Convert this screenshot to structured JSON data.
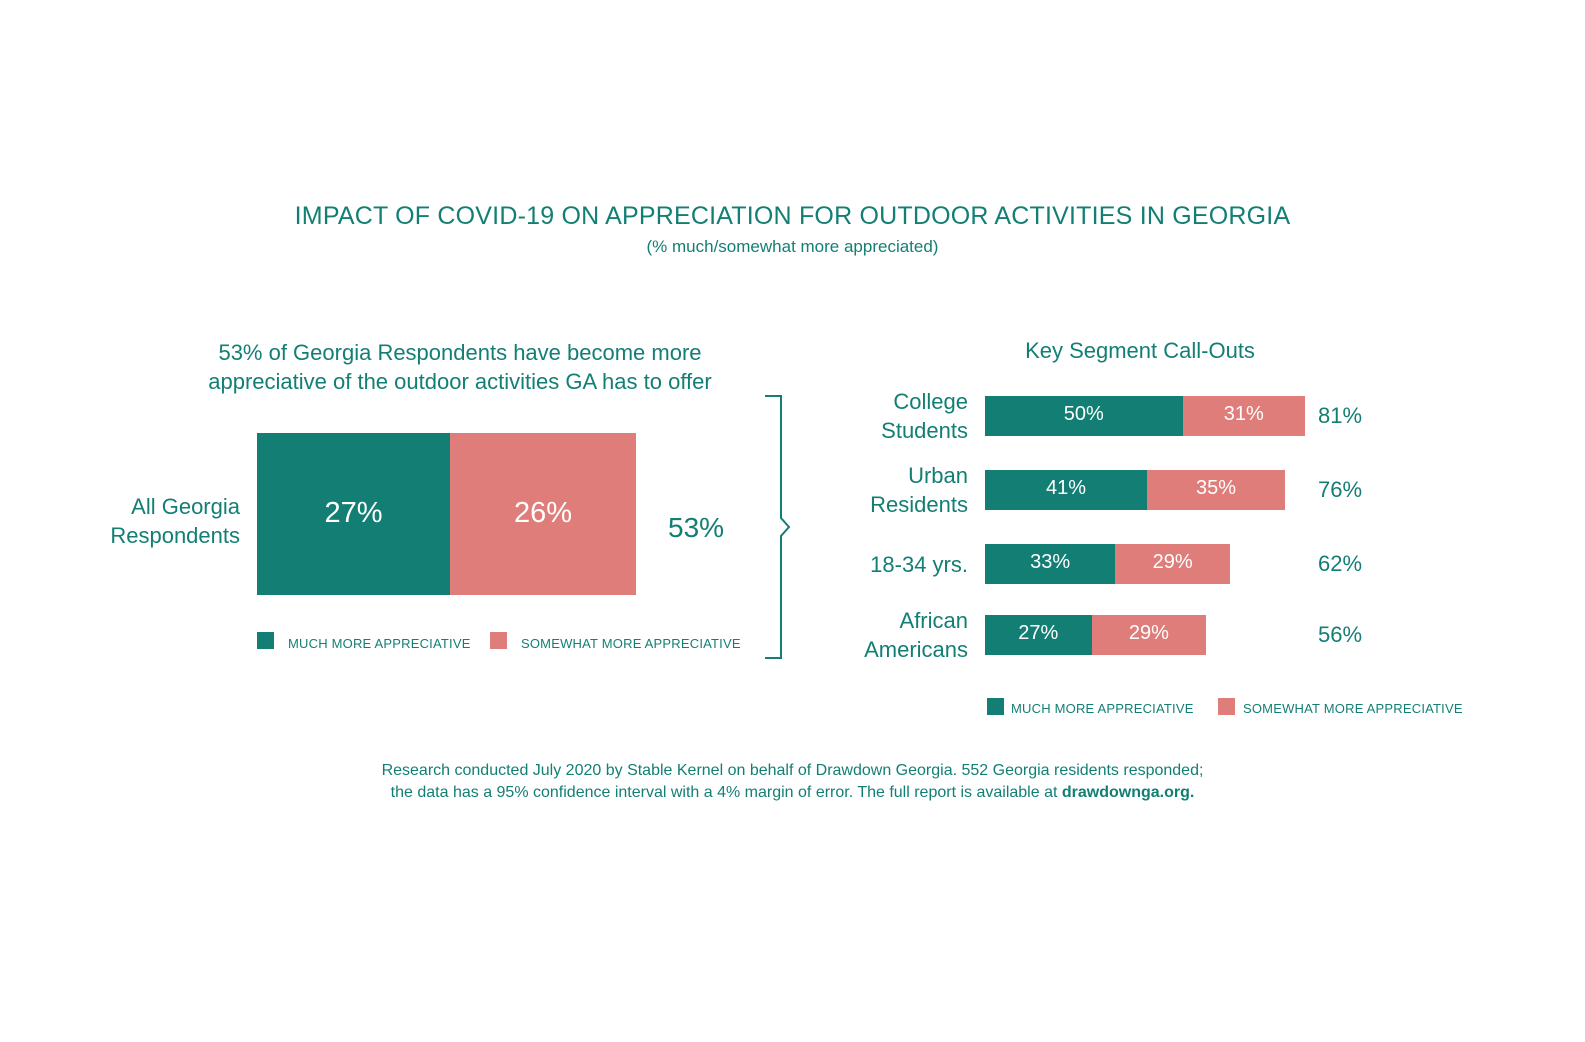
{
  "colors": {
    "text": "#137f74",
    "much": "#137f74",
    "somewhat": "#de7d79"
  },
  "header": {
    "title": "IMPACT OF COVID-19 ON APPRECIATION FOR OUTDOOR ACTIVITIES IN GEORGIA",
    "subtitle": "(% much/somewhat more appreciated)"
  },
  "left": {
    "heading_line1": "53% of Georgia Respondents have become more",
    "heading_line2": "appreciative of the outdoor activities GA has to offer",
    "row_label_line1": "All Georgia",
    "row_label_line2": "Respondents",
    "much_label": "27%",
    "somewhat_label": "26%",
    "total_label": "53%",
    "legend_much": "MUCH MORE APPRECIATIVE",
    "legend_somewhat": "SOMEWHAT MORE APPRECIATIVE"
  },
  "right": {
    "heading": "Key Segment Call-Outs",
    "legend_much": "MUCH MORE APPRECIATIVE",
    "legend_somewhat": "SOMEWHAT MORE APPRECIATIVE",
    "rows": [
      {
        "label_line1": "College",
        "label_line2": "Students",
        "much_label": "50%",
        "somewhat_label": "31%",
        "total_label": "81%"
      },
      {
        "label_line1": "Urban",
        "label_line2": "Residents",
        "much_label": "41%",
        "somewhat_label": "35%",
        "total_label": "76%"
      },
      {
        "label_line1": "18-34 yrs.",
        "label_line2": "",
        "much_label": "33%",
        "somewhat_label": "29%",
        "total_label": "62%"
      },
      {
        "label_line1": "African",
        "label_line2": "Americans",
        "much_label": "27%",
        "somewhat_label": "29%",
        "total_label": "56%"
      }
    ]
  },
  "footnote": {
    "line1": "Research conducted July 2020 by Stable Kernel on behalf of Drawdown Georgia. 552 Georgia residents responded;",
    "line2": "the data has a 95% confidence interval with a 4% margin of error. The full report is available at",
    "link": "drawdownga.org."
  },
  "chart_data": [
    {
      "type": "bar",
      "categories": [
        "All Georgia Respondents"
      ],
      "series": [
        {
          "name": "MUCH MORE APPRECIATIVE",
          "values": [
            27
          ]
        },
        {
          "name": "SOMEWHAT MORE APPRECIATIVE",
          "values": [
            26
          ]
        }
      ],
      "totals": [
        53
      ],
      "stacked": true,
      "orientation": "horizontal"
    },
    {
      "type": "bar",
      "title": "Key Segment Call-Outs",
      "categories": [
        "College Students",
        "Urban Residents",
        "18-34 yrs.",
        "African Americans"
      ],
      "series": [
        {
          "name": "MUCH MORE APPRECIATIVE",
          "values": [
            50,
            41,
            33,
            27
          ]
        },
        {
          "name": "SOMEWHAT MORE APPRECIATIVE",
          "values": [
            31,
            35,
            29,
            29
          ]
        }
      ],
      "totals": [
        81,
        76,
        62,
        56
      ],
      "stacked": true,
      "orientation": "horizontal"
    }
  ]
}
